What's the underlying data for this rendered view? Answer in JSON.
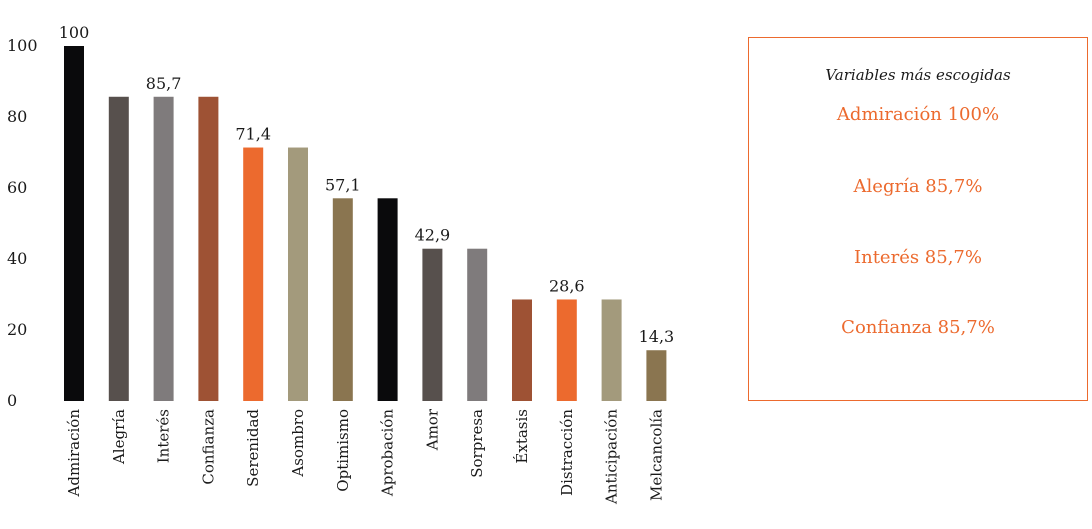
{
  "chart_data": {
    "type": "bar",
    "categories": [
      "Admiración",
      "Alegría",
      "Interés",
      "Confianza",
      "Serenidad",
      "Asombro",
      "Optimismo",
      "Aprobación",
      "Amor",
      "Sorpresa",
      "Éxtasis",
      "Distracción",
      "Anticipación",
      "Melcancolía"
    ],
    "values": [
      100,
      85.7,
      85.7,
      85.7,
      71.4,
      71.4,
      57.1,
      57.1,
      42.9,
      42.9,
      28.6,
      28.6,
      28.6,
      14.3
    ],
    "data_labels": [
      "100",
      "",
      "85,7",
      "",
      "71,4",
      "",
      "57,1",
      "",
      "42,9",
      "",
      "",
      "28,6",
      "",
      "14,3"
    ],
    "bar_colors": [
      "#0a0a0c",
      "#57504d",
      "#7f7b7c",
      "#9e5234",
      "#ec6a2e",
      "#a39a7c",
      "#8a7550",
      "#0a0a0c",
      "#57504d",
      "#7f7b7c",
      "#9e5234",
      "#ec6a2e",
      "#a39a7c",
      "#8a7550"
    ],
    "yticks": [
      "0",
      "20",
      "40",
      "60",
      "80",
      "100"
    ],
    "ylim": [
      0,
      105
    ],
    "grid": false,
    "legend": "right"
  },
  "legend_box": {
    "title": "Variables más escogidas",
    "items": [
      "Admiración 100%",
      "Alegría 85,7%",
      "Interés 85,7%",
      "Confianza 85,7%"
    ],
    "border_color": "#ec6a2e",
    "text_color": "#ec6a2e"
  }
}
